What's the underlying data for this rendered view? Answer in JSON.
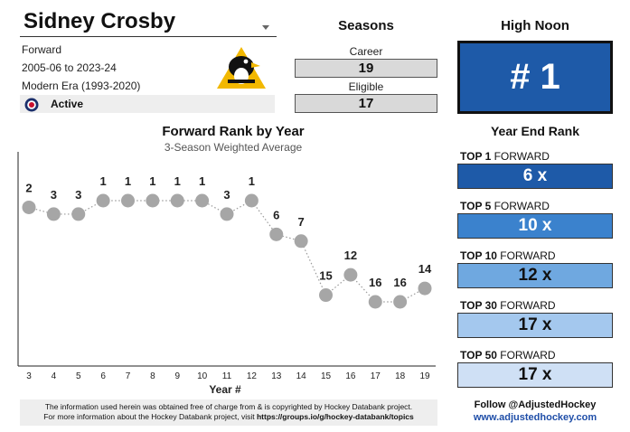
{
  "player": {
    "name": "Sidney Crosby",
    "position": "Forward",
    "seasons_range": "2005-06 to 2023-24",
    "era": "Modern Era (1993-2020)",
    "status": "Active"
  },
  "seasons": {
    "title": "Seasons",
    "career_label": "Career",
    "career_value": "19",
    "eligible_label": "Eligible",
    "eligible_value": "17"
  },
  "high_noon": {
    "title": "High Noon",
    "value": "# 1"
  },
  "year_end_rank": {
    "title": "Year End Rank",
    "items": [
      {
        "label_bold": "TOP 1",
        "label_rest": " FORWARD",
        "value": "6 x",
        "color": "#1e5aa8",
        "text_color": "#ffffff"
      },
      {
        "label_bold": "TOP 5",
        "label_rest": " FORWARD",
        "value": "10 x",
        "color": "#3b82cd",
        "text_color": "#ffffff"
      },
      {
        "label_bold": "TOP 10",
        "label_rest": " FORWARD",
        "value": "12 x",
        "color": "#6fa8e0",
        "text_color": "#111111"
      },
      {
        "label_bold": "TOP 30",
        "label_rest": " FORWARD",
        "value": "17 x",
        "color": "#a4c8ee",
        "text_color": "#111111"
      },
      {
        "label_bold": "TOP 50",
        "label_rest": " FORWARD",
        "value": "17 x",
        "color": "#cfe0f5",
        "text_color": "#111111"
      }
    ]
  },
  "chart_data": {
    "type": "line",
    "title": "Forward Rank by Year",
    "subtitle": "3-Season Weighted Average",
    "xlabel": "Year #",
    "ylabel": "",
    "x": [
      3,
      4,
      5,
      6,
      7,
      8,
      9,
      10,
      11,
      12,
      13,
      14,
      15,
      16,
      17,
      18,
      19
    ],
    "values": [
      2,
      3,
      3,
      1,
      1,
      1,
      1,
      1,
      3,
      1,
      6,
      7,
      15,
      12,
      16,
      16,
      14
    ],
    "ylim": [
      1,
      16
    ],
    "y_reversed": true,
    "marker_color": "#a6a6a6",
    "line_style": "dotted"
  },
  "footer": {
    "line1": "The information used herein was obtained free of charge from & is copyrighted by Hockey Databank project.",
    "line2_prefix": "For more information about the Hockey Databank project, visit ",
    "line2_link": "https://groups.io/g/hockey-databank/topics",
    "follow": "Follow @AdjustedHockey",
    "site": "www.adjustedhockey.com"
  }
}
